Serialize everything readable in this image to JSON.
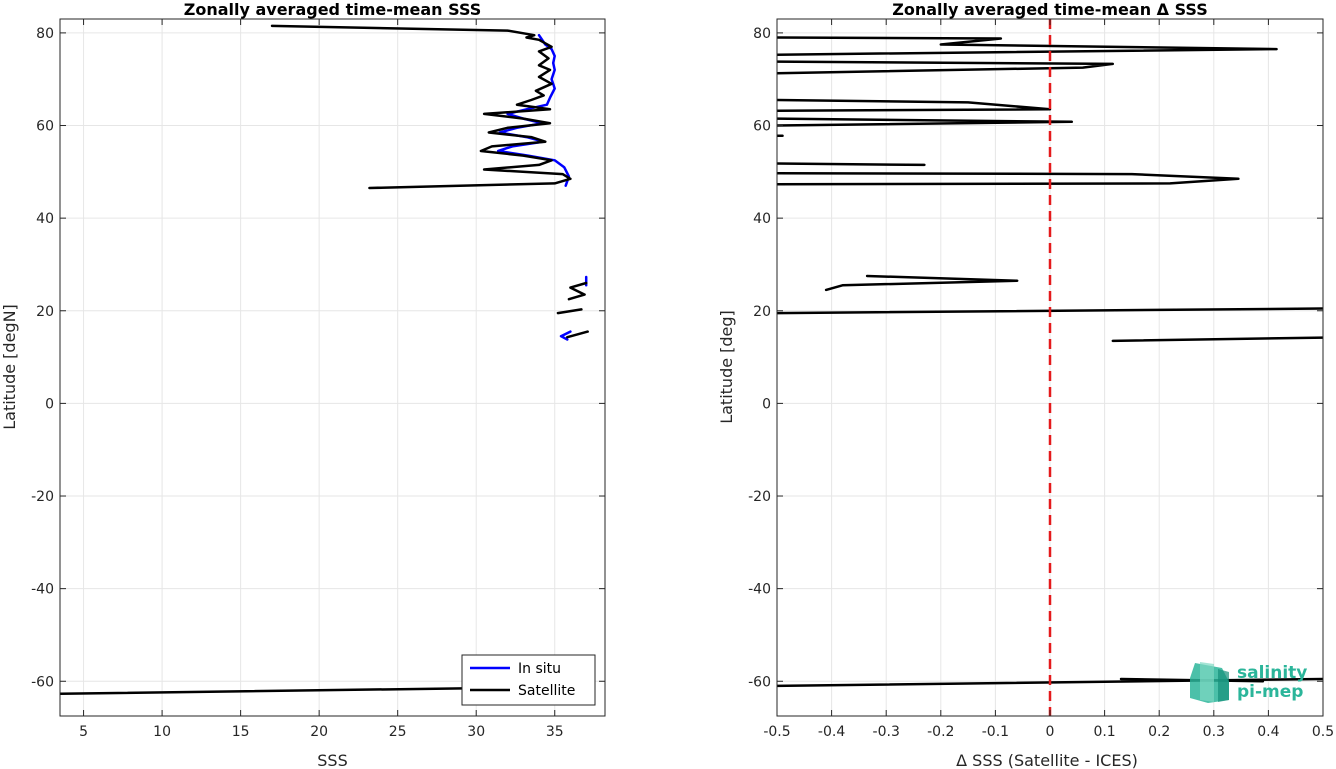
{
  "chart_data": [
    {
      "type": "line",
      "title": "Zonally averaged time-mean SSS",
      "xlabel": "SSS",
      "ylabel": "Latitude [degN]",
      "xlim": [
        3.5,
        38.2
      ],
      "ylim": [
        -67.5,
        83
      ],
      "xticks": [
        5,
        10,
        15,
        20,
        25,
        30,
        35
      ],
      "yticks": [
        -60,
        -40,
        -20,
        0,
        20,
        40,
        60,
        80
      ],
      "grid": true,
      "legend": "bottom-right",
      "series": [
        {
          "name": "In situ",
          "color": "#0000ff",
          "segments": [
            [
              [
                34.0,
                79.5
              ],
              [
                34.4,
                77.5
              ],
              [
                34.8,
                76.5
              ],
              [
                35.0,
                75.0
              ],
              [
                34.9,
                73.5
              ],
              [
                35.0,
                72.0
              ],
              [
                34.8,
                70.0
              ],
              [
                35.0,
                68.0
              ],
              [
                34.7,
                66.0
              ],
              [
                34.5,
                64.5
              ],
              [
                33.2,
                63.5
              ],
              [
                32.0,
                62.5
              ],
              [
                33.0,
                61.5
              ],
              [
                34.2,
                60.5
              ],
              [
                32.6,
                59.5
              ],
              [
                31.5,
                58.5
              ],
              [
                33.2,
                57.5
              ],
              [
                34.3,
                56.5
              ],
              [
                32.3,
                55.5
              ],
              [
                31.4,
                54.5
              ],
              [
                33.3,
                53.5
              ],
              [
                35.0,
                52.5
              ],
              [
                35.6,
                51.0
              ],
              [
                35.9,
                49.0
              ],
              [
                35.7,
                47.0
              ]
            ],
            [
              [
                37.0,
                27.3
              ],
              [
                37.0,
                25.5
              ]
            ],
            [
              [
                36.0,
                15.5
              ],
              [
                35.4,
                14.5
              ],
              [
                35.8,
                13.8
              ]
            ]
          ]
        },
        {
          "name": "Satellite",
          "color": "#000000",
          "segments": [
            [
              [
                17.0,
                81.5
              ],
              [
                32.0,
                80.5
              ],
              [
                33.7,
                79.5
              ],
              [
                33.2,
                79.0
              ],
              [
                34.0,
                78.5
              ],
              [
                34.8,
                77.0
              ],
              [
                34.0,
                76.0
              ],
              [
                34.6,
                74.5
              ],
              [
                34.0,
                73.0
              ],
              [
                34.7,
                72.0
              ],
              [
                34.0,
                70.5
              ],
              [
                34.8,
                69.0
              ],
              [
                33.8,
                67.5
              ],
              [
                34.3,
                66.5
              ],
              [
                33.5,
                65.5
              ],
              [
                32.6,
                64.5
              ],
              [
                34.7,
                63.5
              ],
              [
                30.5,
                62.5
              ],
              [
                33.0,
                61.5
              ],
              [
                34.7,
                60.5
              ],
              [
                32.0,
                59.5
              ],
              [
                30.8,
                58.5
              ],
              [
                33.5,
                57.5
              ],
              [
                34.4,
                56.5
              ],
              [
                31.0,
                55.5
              ],
              [
                30.3,
                54.5
              ],
              [
                33.0,
                53.5
              ],
              [
                34.8,
                52.5
              ],
              [
                34.0,
                51.5
              ],
              [
                30.5,
                50.5
              ],
              [
                35.5,
                49.5
              ],
              [
                36.0,
                48.5
              ],
              [
                35.0,
                47.5
              ],
              [
                23.2,
                46.5
              ]
            ],
            [
              [
                37.0,
                26.0
              ],
              [
                36.0,
                25.0
              ],
              [
                36.9,
                23.5
              ],
              [
                35.9,
                22.5
              ]
            ],
            [
              [
                36.7,
                20.3
              ],
              [
                35.2,
                19.5
              ]
            ],
            [
              [
                37.1,
                15.5
              ],
              [
                35.8,
                14.3
              ]
            ],
            [
              [
                3.5,
                -62.7
              ],
              [
                34.0,
                -61.3
              ]
            ]
          ]
        }
      ]
    },
    {
      "type": "line",
      "title": "Zonally averaged time-mean Δ SSS",
      "xlabel": "Δ SSS (Satellite - ICES)",
      "ylabel": "Latitude [deg]",
      "xlim": [
        -0.5,
        0.5
      ],
      "ylim": [
        -67.5,
        83
      ],
      "xticks": [
        -0.5,
        -0.4,
        -0.3,
        -0.2,
        -0.1,
        0,
        0.1,
        0.2,
        0.3,
        0.4,
        0.5
      ],
      "xticklabels": [
        "-0.5",
        "-0.4",
        "-0.3",
        "-0.2",
        "-0.1",
        "0",
        "0.1",
        "0.2",
        "0.3",
        "0.4",
        "0.5"
      ],
      "yticks": [
        -60,
        -40,
        -20,
        0,
        20,
        40,
        60,
        80
      ],
      "grid": true,
      "zero_line_color": "#e41a1c",
      "series": [
        {
          "color": "#000000",
          "segments": [
            [
              [
                -0.5,
                79.0
              ],
              [
                -0.09,
                78.8
              ],
              [
                -0.2,
                77.5
              ],
              [
                0.415,
                76.5
              ],
              [
                -0.5,
                75.3
              ]
            ],
            [
              [
                -0.5,
                73.8
              ],
              [
                0.115,
                73.3
              ],
              [
                0.06,
                72.5
              ],
              [
                -0.5,
                71.3
              ]
            ],
            [
              [
                -0.5,
                65.5
              ],
              [
                -0.15,
                65.0
              ],
              [
                0.0,
                63.5
              ],
              [
                -0.5,
                63.2
              ]
            ],
            [
              [
                -0.5,
                61.5
              ],
              [
                0.04,
                60.8
              ],
              [
                -0.5,
                60.0
              ]
            ],
            [
              [
                -0.49,
                57.8
              ],
              [
                -0.5,
                57.8
              ]
            ],
            [
              [
                -0.5,
                51.8
              ],
              [
                -0.23,
                51.5
              ]
            ],
            [
              [
                -0.5,
                49.7
              ],
              [
                0.15,
                49.5
              ],
              [
                0.345,
                48.5
              ],
              [
                0.22,
                47.5
              ],
              [
                -0.5,
                47.3
              ]
            ],
            [
              [
                -0.335,
                27.5
              ],
              [
                -0.06,
                26.5
              ],
              [
                -0.38,
                25.5
              ],
              [
                -0.41,
                24.5
              ]
            ],
            [
              [
                -0.5,
                19.5
              ],
              [
                0.5,
                20.5
              ]
            ],
            [
              [
                0.115,
                13.5
              ],
              [
                0.5,
                14.2
              ]
            ],
            [
              [
                -0.5,
                -61.0
              ],
              [
                0.5,
                -59.5
              ]
            ],
            [
              [
                0.13,
                -59.5
              ],
              [
                0.39,
                -60.0
              ]
            ]
          ]
        }
      ]
    }
  ],
  "legend": {
    "items": [
      "In situ",
      "Satellite"
    ]
  },
  "logo": {
    "line1": "salinity",
    "line2": "pi-mep"
  }
}
